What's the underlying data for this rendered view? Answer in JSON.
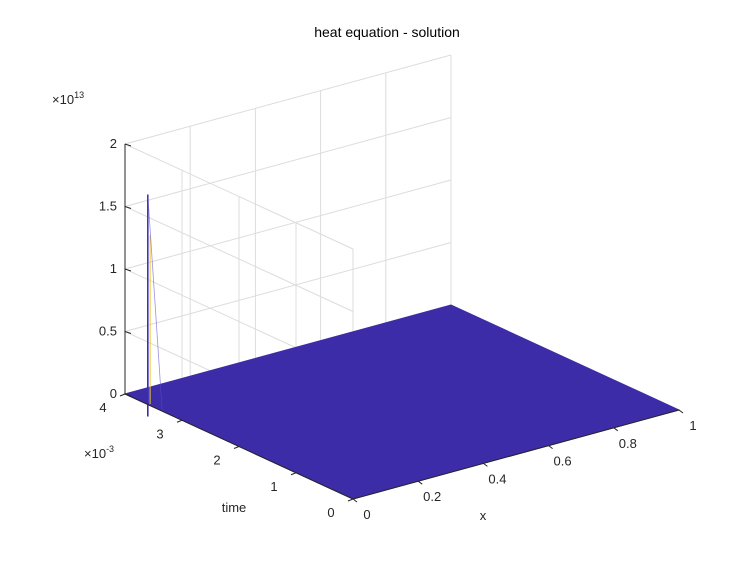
{
  "chart_data": {
    "type": "surface",
    "title": "heat equation - solution",
    "xlabel": "x",
    "ylabel": "time",
    "zlabel": "",
    "x_ticks": [
      "0",
      "0.2",
      "0.4",
      "0.6",
      "0.8",
      "1"
    ],
    "y_ticks": [
      "0",
      "1",
      "2",
      "3",
      "4"
    ],
    "y_exponent": "×10",
    "y_exponent_power": "-3",
    "z_ticks": [
      "0",
      "0.5",
      "1",
      "1.5",
      "2"
    ],
    "z_exponent": "×10",
    "z_exponent_power": "13",
    "xlim": [
      0,
      1
    ],
    "ylim": [
      0,
      0.004
    ],
    "zlim": [
      0,
      20000000000000.0
    ],
    "grid": true,
    "surface_color": "#3c2ca8",
    "spike": {
      "x": 0,
      "time": 0.0036,
      "peak_value": 16800000000000.0,
      "secondary_value": 13500000000000.0,
      "secondary_color": "#e8c930"
    },
    "surface_value_elsewhere": 0
  }
}
